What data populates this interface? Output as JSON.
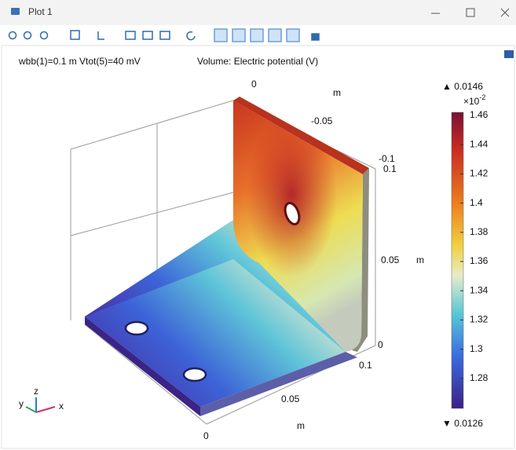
{
  "window": {
    "title": "Plot 1"
  },
  "plot": {
    "info": [
      "wbb(1)=0.1 m Vtot(5)=40 mV",
      "Volume: Electric potential (V)"
    ],
    "axis_labels": [
      "0",
      "m",
      "-0.05",
      "-0.1",
      "0.1",
      "0.05",
      "m",
      "0",
      "0.1",
      "0.05",
      "m",
      "0"
    ],
    "triad": [
      "z",
      "y",
      "x"
    ]
  },
  "colorbar": {
    "max": "▲ 0.0146",
    "scale": "×10",
    "exponent": "-2",
    "ticks": [
      "1.46",
      "1.44",
      "1.42",
      "1.4",
      "1.38",
      "1.36",
      "1.34",
      "1.32",
      "1.3",
      "1.28"
    ],
    "min": "▼ 0.0126"
  }
}
